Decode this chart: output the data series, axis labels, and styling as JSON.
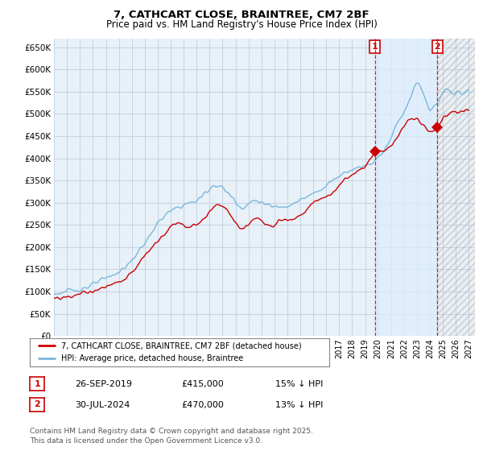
{
  "title": "7, CATHCART CLOSE, BRAINTREE, CM7 2BF",
  "subtitle": "Price paid vs. HM Land Registry's House Price Index (HPI)",
  "legend_line1": "7, CATHCART CLOSE, BRAINTREE, CM7 2BF (detached house)",
  "legend_line2": "HPI: Average price, detached house, Braintree",
  "footer": "Contains HM Land Registry data © Crown copyright and database right 2025.\nThis data is licensed under the Open Government Licence v3.0.",
  "annotation1": {
    "label": "1",
    "date": "26-SEP-2019",
    "price": "£415,000",
    "note": "15% ↓ HPI"
  },
  "annotation2": {
    "label": "2",
    "date": "30-JUL-2024",
    "price": "£470,000",
    "note": "13% ↓ HPI"
  },
  "hpi_color": "#7ab8d9",
  "price_color": "#cc0000",
  "annotation_color": "#cc0000",
  "ylim": [
    0,
    670000
  ],
  "yticks": [
    0,
    50000,
    100000,
    150000,
    200000,
    250000,
    300000,
    350000,
    400000,
    450000,
    500000,
    550000,
    600000,
    650000
  ],
  "xlim_start": 1995.0,
  "xlim_end": 2027.5,
  "background_color": "#ffffff",
  "grid_color": "#c0cfe0",
  "plot_bg_color": "#e8f0f8",
  "purchase1_x": 2019.75,
  "purchase1_y": 415000,
  "purchase2_x": 2024.583,
  "purchase2_y": 470000
}
